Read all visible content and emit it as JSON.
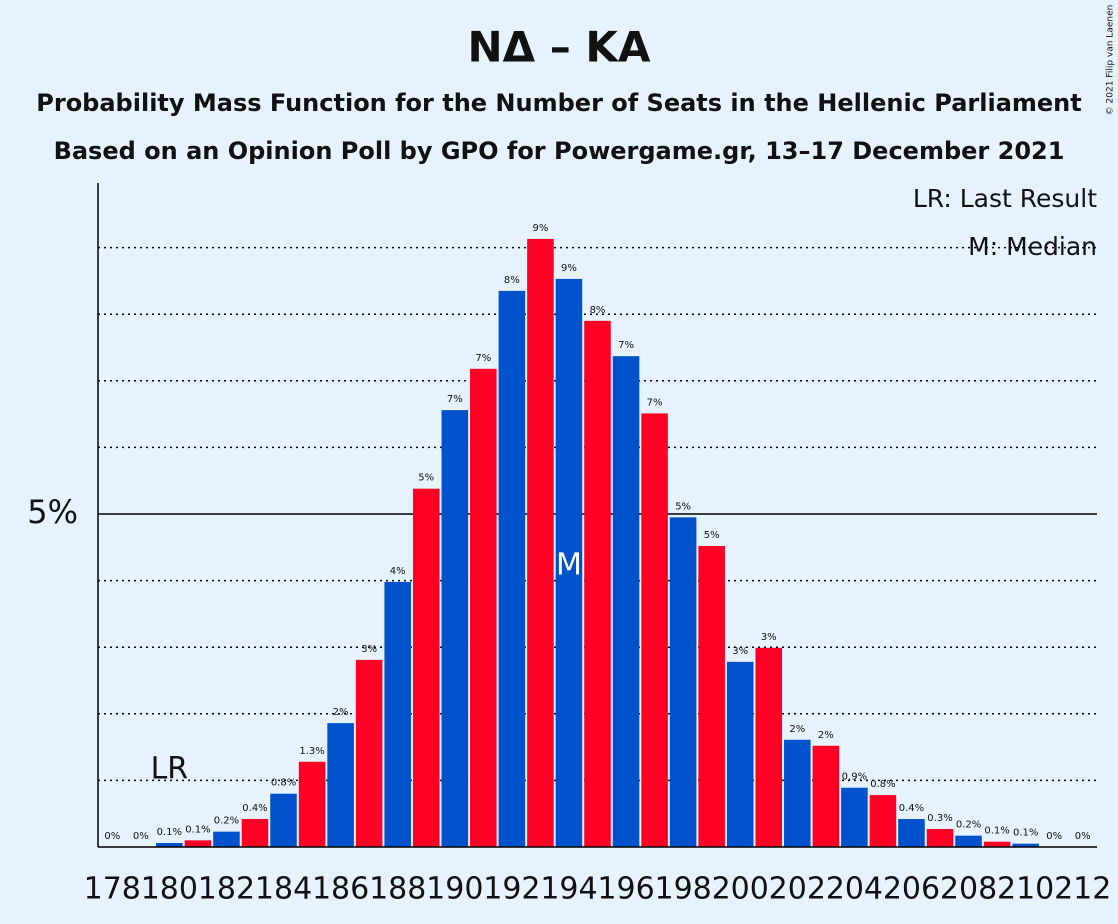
{
  "chart_data": {
    "type": "bar",
    "title": "NΔ – KA",
    "subtitle": "Probability Mass Function for the Number of Seats in the Hellenic Parliament",
    "subtitle2": "Based on an Opinion Poll by GPO for Powergame.gr, 13–17 December 2021",
    "copyright": "© 2021 Filip van Laenen",
    "x": [
      178,
      179,
      180,
      181,
      182,
      183,
      184,
      185,
      186,
      187,
      188,
      189,
      190,
      191,
      192,
      193,
      194,
      195,
      196,
      197,
      198,
      199,
      200,
      201,
      202,
      203,
      204,
      205,
      206,
      207,
      208,
      209,
      210,
      211,
      212
    ],
    "values": [
      0,
      0,
      0.06,
      0.1,
      0.23,
      0.42,
      0.8,
      1.28,
      1.86,
      2.81,
      3.98,
      5.38,
      6.56,
      7.18,
      8.35,
      9.13,
      8.53,
      7.9,
      7.37,
      6.51,
      4.95,
      4.52,
      2.78,
      2.99,
      1.61,
      1.52,
      0.89,
      0.78,
      0.42,
      0.27,
      0.17,
      0.08,
      0.05,
      0,
      0
    ],
    "value_labels": [
      "0%",
      "0%",
      "0.1%",
      "0.1%",
      "0.2%",
      "0.4%",
      "0.8%",
      "1.3%",
      "2%",
      "3%",
      "4%",
      "5%",
      "7%",
      "7%",
      "8%",
      "9%",
      "9%",
      "8%",
      "7%",
      "7%",
      "5%",
      "5%",
      "3%",
      "3%",
      "2%",
      "2%",
      "0.9%",
      "0.8%",
      "0.4%",
      "0.3%",
      "0.2%",
      "0.1%",
      "0.1%",
      "0%",
      "0%"
    ],
    "colors": [
      "#0052cc",
      "#ff0025"
    ],
    "xlim": [
      177.5,
      212.5
    ],
    "xticks": [
      178,
      180,
      182,
      184,
      186,
      188,
      190,
      192,
      194,
      196,
      198,
      200,
      202,
      204,
      206,
      208,
      210,
      212
    ],
    "ylim": [
      0,
      9.97
    ],
    "yticks": [
      {
        "value": 5,
        "label": "5%"
      }
    ],
    "grid_lines": [
      1,
      2,
      3,
      4,
      6,
      7,
      8,
      9
    ],
    "last_result": 180,
    "last_result_label": "LR",
    "median": 194,
    "median_label": "M",
    "legend": [
      "LR: Last Result",
      "M: Median"
    ]
  }
}
